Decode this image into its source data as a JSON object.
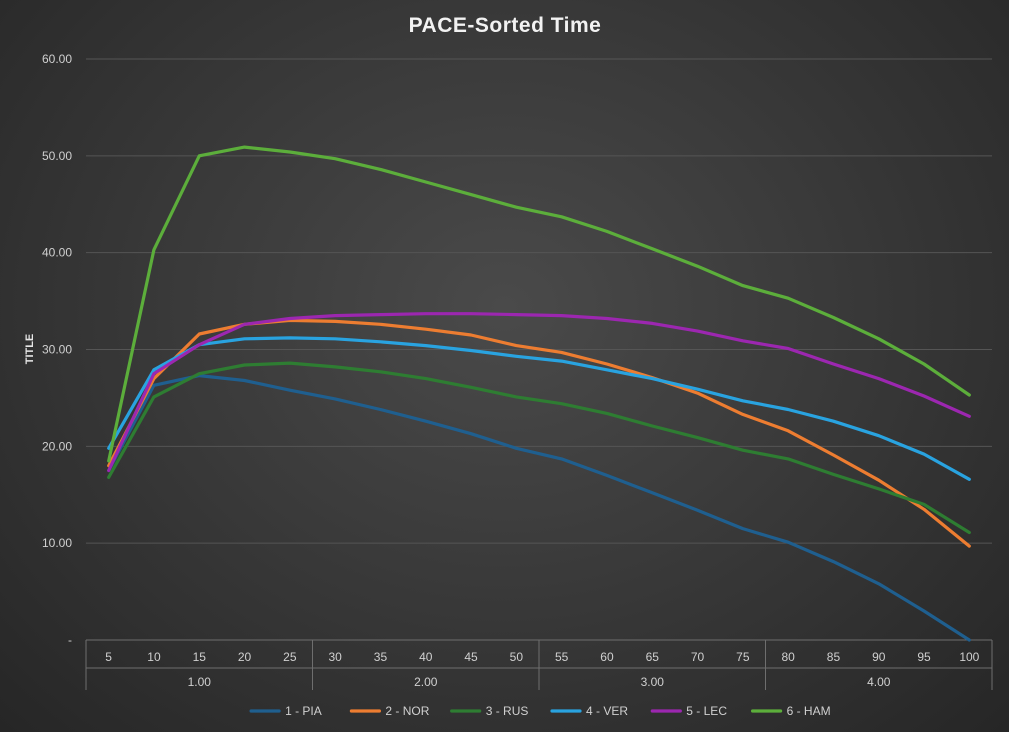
{
  "chart_data": {
    "type": "line",
    "title": "PACE-Sorted Time",
    "xlabel": "",
    "ylabel": "TITLE",
    "ylim": [
      0,
      60
    ],
    "yticks": [
      0,
      10,
      20,
      30,
      40,
      50,
      60
    ],
    "ytick_labels": [
      "-",
      "10.00",
      "20.00",
      "30.00",
      "40.00",
      "50.00",
      "60.00"
    ],
    "categories": [
      "5",
      "10",
      "15",
      "20",
      "25",
      "30",
      "35",
      "40",
      "45",
      "50",
      "55",
      "60",
      "65",
      "70",
      "75",
      "80",
      "85",
      "90",
      "95",
      "100"
    ],
    "groups": [
      {
        "label": "1.00",
        "count": 5
      },
      {
        "label": "2.00",
        "count": 5
      },
      {
        "label": "3.00",
        "count": 5
      },
      {
        "label": "4.00",
        "count": 5
      }
    ],
    "grid": true,
    "legend_position": "bottom",
    "series": [
      {
        "name": "1 - PIA",
        "color": "#1f5f8f",
        "values": [
          17.5,
          26.3,
          27.3,
          26.8,
          25.8,
          24.9,
          23.8,
          22.6,
          21.3,
          19.8,
          18.7,
          17.0,
          15.2,
          13.4,
          11.5,
          10.1,
          8.1,
          5.8,
          3.0,
          0.0
        ]
      },
      {
        "name": "2 - NOR",
        "color": "#ed7d31",
        "values": [
          18.0,
          27.0,
          31.6,
          32.6,
          33.0,
          32.9,
          32.6,
          32.1,
          31.5,
          30.4,
          29.7,
          28.5,
          27.1,
          25.5,
          23.3,
          21.6,
          19.1,
          16.5,
          13.5,
          9.7
        ]
      },
      {
        "name": "3 - RUS",
        "color": "#2e7d32",
        "values": [
          16.8,
          25.1,
          27.5,
          28.4,
          28.6,
          28.2,
          27.7,
          27.0,
          26.1,
          25.1,
          24.4,
          23.4,
          22.1,
          20.9,
          19.6,
          18.7,
          17.1,
          15.6,
          14.0,
          11.1
        ]
      },
      {
        "name": "4 - VER",
        "color": "#29a3e0",
        "values": [
          19.8,
          27.9,
          30.5,
          31.1,
          31.2,
          31.1,
          30.8,
          30.4,
          29.9,
          29.3,
          28.8,
          27.9,
          27.0,
          25.9,
          24.7,
          23.8,
          22.6,
          21.1,
          19.2,
          16.6
        ]
      },
      {
        "name": "5 - LEC",
        "color": "#9c27b0",
        "values": [
          17.5,
          27.5,
          30.5,
          32.6,
          33.2,
          33.5,
          33.6,
          33.7,
          33.7,
          33.6,
          33.5,
          33.2,
          32.7,
          31.9,
          30.9,
          30.1,
          28.5,
          27.0,
          25.2,
          23.1
        ]
      },
      {
        "name": "6 - HAM",
        "color": "#5cae3b",
        "values": [
          18.5,
          40.3,
          50.0,
          50.9,
          50.4,
          49.7,
          48.6,
          47.3,
          46.0,
          44.7,
          43.7,
          42.2,
          40.4,
          38.6,
          36.6,
          35.3,
          33.3,
          31.1,
          28.5,
          25.3
        ]
      }
    ]
  }
}
